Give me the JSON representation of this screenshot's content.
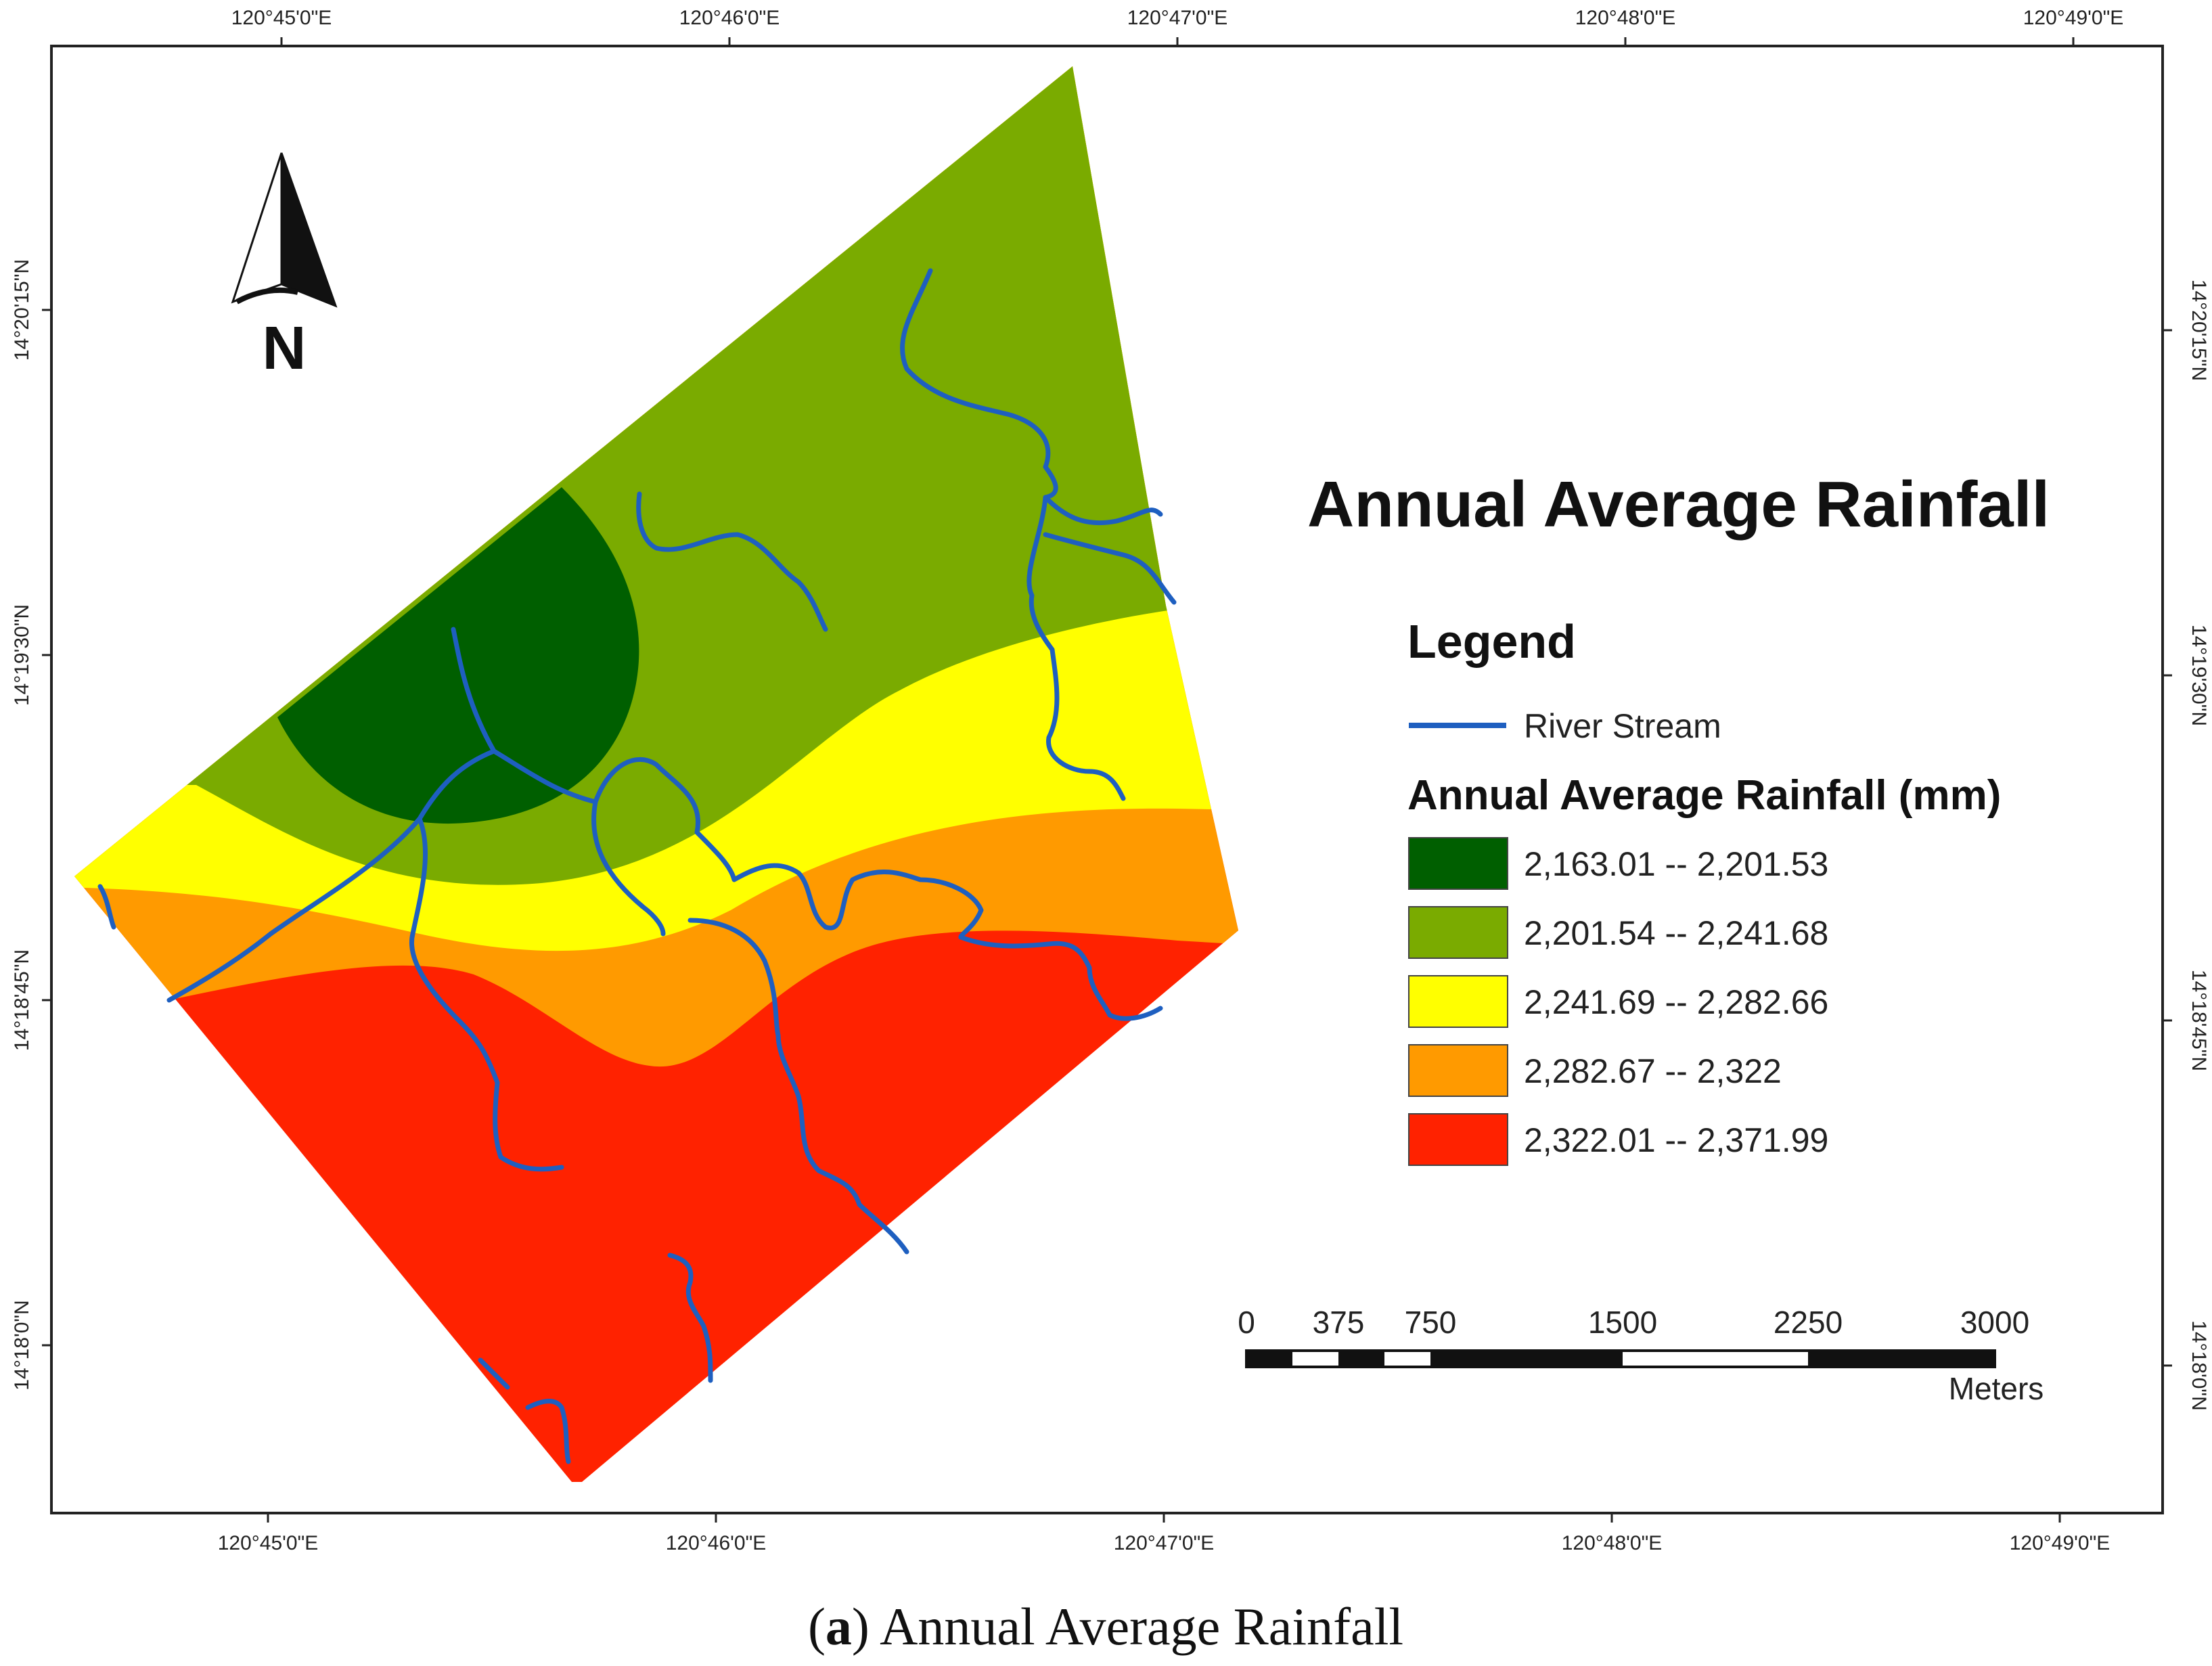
{
  "colors": {
    "zone1": "#005f00",
    "zone2": "#7aab00",
    "zone3": "#ffff00",
    "zone4": "#ff9a00",
    "zone5": "#ff2200",
    "river": "#1e5fc0"
  },
  "top_ticks": [
    "120°45'0\"E",
    "120°46'0\"E",
    "120°47'0\"E",
    "120°48'0\"E",
    "120°49'0\"E"
  ],
  "bottom_ticks": [
    "120°45'0\"E",
    "120°46'0\"E",
    "120°47'0\"E",
    "120°48'0\"E",
    "120°49'0\"E"
  ],
  "left_ticks": [
    "14°20'15\"N",
    "14°19'30\"N",
    "14°18'45\"N",
    "14°18'0\"N"
  ],
  "right_ticks": [
    "14°20'15\"N",
    "14°19'30\"N",
    "14°18'45\"N",
    "14°18'0\"N"
  ],
  "north_label": "N",
  "map_title": "Annual Average Rainfall",
  "legend": {
    "heading": "Legend",
    "river_label": "River Stream",
    "rainfall_heading": "Annual Average Rainfall (mm)",
    "classes": [
      {
        "label": "2,163.01 -- 2,201.53",
        "color": "#005f00"
      },
      {
        "label": "2,201.54 -- 2,241.68",
        "color": "#7aab00"
      },
      {
        "label": "2,241.69 -- 2,282.66",
        "color": "#ffff00"
      },
      {
        "label": "2,282.67 -- 2,322",
        "color": "#ff9a00"
      },
      {
        "label": "2,322.01 -- 2,371.99",
        "color": "#ff2200"
      }
    ]
  },
  "scale_bar": {
    "labels": [
      "0",
      "375",
      "750",
      "1500",
      "2250",
      "3000"
    ],
    "unit": "Meters"
  },
  "caption": {
    "letter": "a",
    "text": "Annual Average Rainfall"
  }
}
